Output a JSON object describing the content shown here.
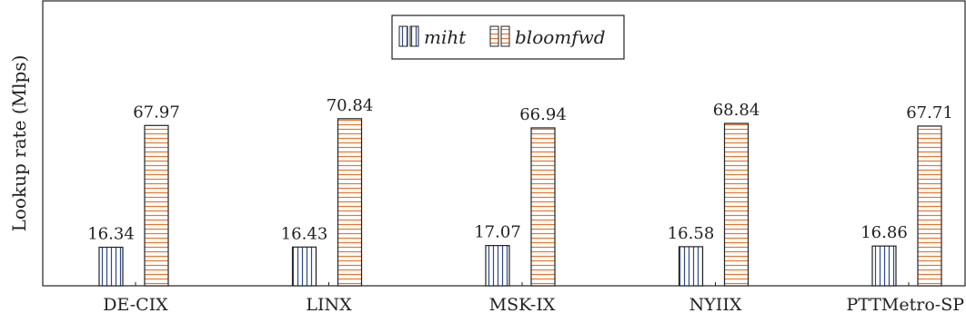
{
  "chart_data": {
    "type": "bar",
    "categories": [
      "DE-CIX",
      "LINX",
      "MSK-IX",
      "NYIIX",
      "PTTMetro-SP"
    ],
    "series": [
      {
        "name": "miht",
        "values": [
          16.34,
          16.43,
          17.07,
          16.58,
          16.86
        ],
        "color": "#2c4a8c",
        "pattern": "vertical-lines"
      },
      {
        "name": "bloomfwd",
        "values": [
          67.97,
          70.84,
          66.94,
          68.84,
          67.71
        ],
        "color": "#e8762d",
        "pattern": "horizontal-lines"
      }
    ],
    "value_labels": {
      "miht": [
        "16.34",
        "16.43",
        "17.07",
        "16.58",
        "16.86"
      ],
      "bloomfwd": [
        "67.97",
        "70.84",
        "66.94",
        "68.84",
        "67.71"
      ]
    },
    "title": "",
    "xlabel": "",
    "ylabel": "Lookup rate (Mlps)",
    "ylim": [
      0,
      80
    ],
    "grid": false,
    "legend_position": "top-center",
    "show_y_ticks": false
  }
}
